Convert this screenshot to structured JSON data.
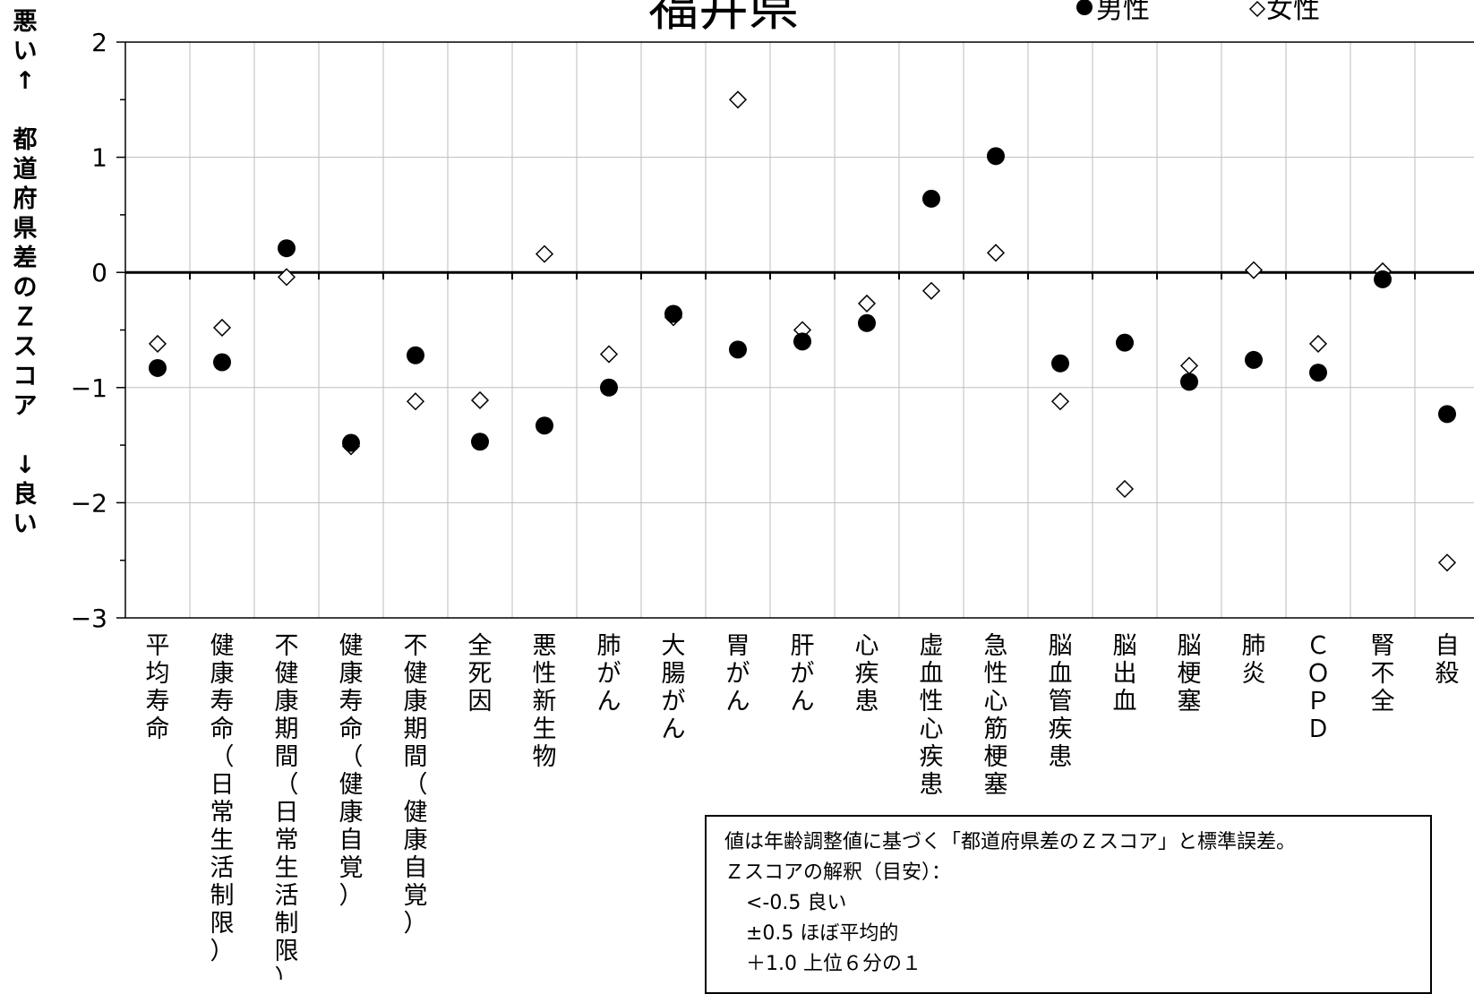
{
  "chart_data": {
    "type": "scatter",
    "title": "福井県",
    "ylabel": "悪い↑　都道府県差のＺスコア　↓良い",
    "ylim": [
      -3,
      2
    ],
    "yticks": [
      "2",
      "1",
      "0",
      "−1",
      "−2",
      "−3"
    ],
    "grid": true,
    "legend_position": "top-right",
    "categories": [
      "平均寿命",
      "健康寿命（日常生活制限）",
      "不健康期間（日常生活制限）",
      "健康寿命（健康自覚）",
      "不健康期間（健康自覚）",
      "全死因",
      "悪性新生物",
      "肺がん",
      "大腸がん",
      "胃がん",
      "肝がん",
      "心疾患",
      "虚血性心疾患",
      "急性心筋梗塞",
      "脳血管疾患",
      "脳出血",
      "脳梗塞",
      "肺炎",
      "ＣＯＰＤ",
      "腎不全",
      "自殺"
    ],
    "series": [
      {
        "name": "男性",
        "marker": "filled-circle",
        "color": "#000000",
        "values": [
          -0.83,
          -0.78,
          0.21,
          -1.48,
          -0.72,
          -1.47,
          -1.33,
          -1.0,
          -0.36,
          -0.67,
          -0.6,
          -0.44,
          0.64,
          1.01,
          -0.79,
          -0.61,
          -0.95,
          -0.76,
          -0.87,
          -0.06,
          -1.23
        ]
      },
      {
        "name": "女性",
        "marker": "open-diamond",
        "color": "#000000",
        "values": [
          -0.62,
          -0.48,
          -0.04,
          -1.51,
          -1.12,
          -1.11,
          0.16,
          -0.71,
          -0.39,
          1.5,
          -0.5,
          -0.27,
          -0.16,
          0.17,
          -1.12,
          -1.88,
          -0.81,
          0.02,
          -0.62,
          0.01,
          -2.52
        ]
      }
    ]
  },
  "note": {
    "lines": [
      "値は年齢調整値に基づく「都道府県差のＺスコア」と標準誤差。",
      "Ｚスコアの解釈（目安）：",
      "<-0.5 良い",
      "±0.5 ほぼ平均的",
      "＋1.0 上位６分の１"
    ]
  }
}
